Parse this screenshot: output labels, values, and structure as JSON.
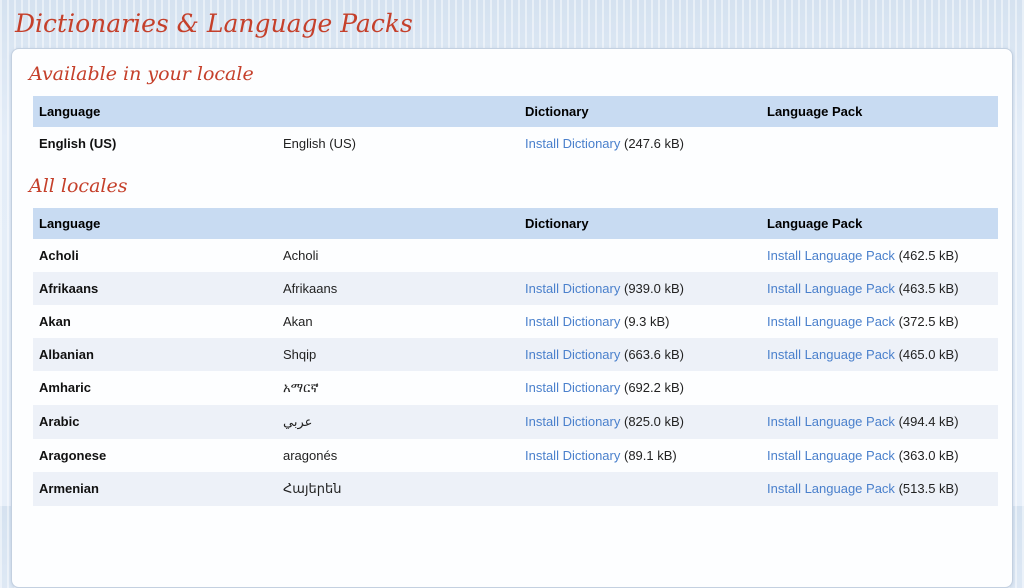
{
  "page": {
    "title": "Dictionaries & Language Packs"
  },
  "labels": {
    "install_dictionary": "Install Dictionary",
    "install_language_pack": "Install Language Pack"
  },
  "colors": {
    "accent-red": "#c5402b",
    "link-blue": "#4a80cc",
    "table-header-bg": "#c8dbf2",
    "row-alt-bg": "#edf1f8",
    "page-bg": "#dde8f4"
  },
  "sections": [
    {
      "heading": "Available in your locale",
      "columns": [
        "Language",
        "Dictionary",
        "Language Pack"
      ],
      "rows": [
        {
          "language": "English (US)",
          "native": "English (US)",
          "dictionary": {
            "label": "Install Dictionary",
            "size": "(247.6 kB)"
          },
          "language_pack": null
        }
      ]
    },
    {
      "heading": "All locales",
      "columns": [
        "Language",
        "Dictionary",
        "Language Pack"
      ],
      "rows": [
        {
          "language": "Acholi",
          "native": "Acholi",
          "dictionary": null,
          "language_pack": {
            "label": "Install Language Pack",
            "size": "(462.5 kB)"
          }
        },
        {
          "language": "Afrikaans",
          "native": "Afrikaans",
          "dictionary": {
            "label": "Install Dictionary",
            "size": "(939.0 kB)"
          },
          "language_pack": {
            "label": "Install Language Pack",
            "size": "(463.5 kB)"
          }
        },
        {
          "language": "Akan",
          "native": "Akan",
          "dictionary": {
            "label": "Install Dictionary",
            "size": "(9.3 kB)"
          },
          "language_pack": {
            "label": "Install Language Pack",
            "size": "(372.5 kB)"
          }
        },
        {
          "language": "Albanian",
          "native": "Shqip",
          "dictionary": {
            "label": "Install Dictionary",
            "size": "(663.6 kB)"
          },
          "language_pack": {
            "label": "Install Language Pack",
            "size": "(465.0 kB)"
          }
        },
        {
          "language": "Amharic",
          "native": "አማርኛ",
          "dictionary": {
            "label": "Install Dictionary",
            "size": "(692.2 kB)"
          },
          "language_pack": null
        },
        {
          "language": "Arabic",
          "native": "عربي",
          "dictionary": {
            "label": "Install Dictionary",
            "size": "(825.0 kB)"
          },
          "language_pack": {
            "label": "Install Language Pack",
            "size": "(494.4 kB)"
          }
        },
        {
          "language": "Aragonese",
          "native": "aragonés",
          "dictionary": {
            "label": "Install Dictionary",
            "size": "(89.1 kB)"
          },
          "language_pack": {
            "label": "Install Language Pack",
            "size": "(363.0 kB)"
          }
        },
        {
          "language": "Armenian",
          "native": "Հայերեն",
          "dictionary": null,
          "language_pack": {
            "label": "Install Language Pack",
            "size": "(513.5 kB)"
          }
        }
      ]
    }
  ]
}
